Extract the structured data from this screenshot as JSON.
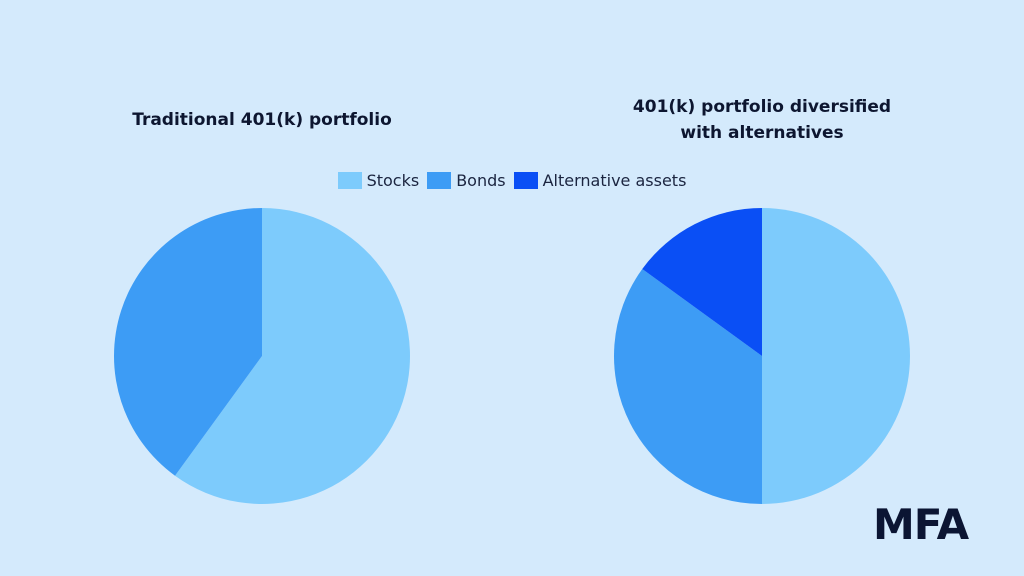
{
  "chart_data": [
    {
      "type": "pie",
      "title": "Traditional 401(k) portfolio",
      "values": [
        60,
        40
      ],
      "colors": [
        "#7dcbfc",
        "#3d9cf5"
      ]
    },
    {
      "type": "pie",
      "title": "401(k) portfolio diversified with alternatives",
      "values": [
        50,
        35,
        15
      ],
      "colors": [
        "#7dcbfc",
        "#3d9cf5",
        "#0a4ff5"
      ]
    }
  ],
  "legend": {
    "labels": [
      "Stocks",
      "Bonds",
      "Alternative assets"
    ],
    "colors": [
      "#7dcbfc",
      "#3d9cf5",
      "#0a4ff5"
    ]
  },
  "logo": "MFA"
}
